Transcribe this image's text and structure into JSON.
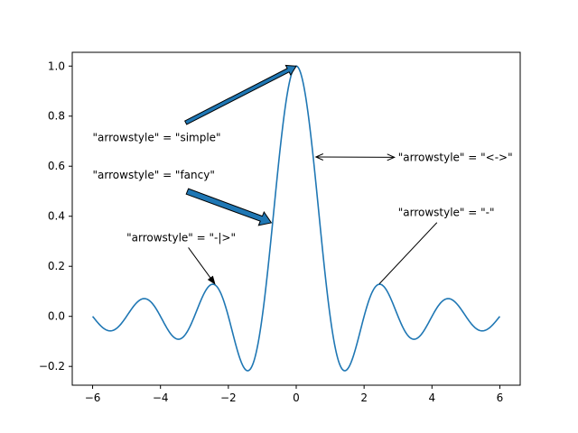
{
  "chart_data": {
    "type": "line",
    "xlim": [
      -6.6,
      6.6
    ],
    "ylim": [
      -0.275,
      1.055
    ],
    "x_ticks": [
      -6,
      -4,
      -2,
      0,
      2,
      4,
      6
    ],
    "y_ticks": [
      -0.2,
      0.0,
      0.2,
      0.4,
      0.6,
      0.8,
      1.0
    ],
    "x_tick_labels": [
      "−6",
      "−4",
      "−2",
      "0",
      "2",
      "4",
      "6"
    ],
    "y_tick_labels": [
      "−0.2",
      "0.0",
      "0.2",
      "0.4",
      "0.6",
      "0.8",
      "1.0"
    ],
    "grid": false,
    "series": [
      {
        "color": "#1f77b4",
        "x": [
          -6.0,
          -5.75,
          -5.5,
          -5.25,
          -5.0,
          -4.75,
          -4.493,
          -4.25,
          -4.0,
          -3.75,
          -3.5,
          -3.25,
          -3.0,
          -2.75,
          -2.459,
          -2.25,
          -2.0,
          -1.75,
          -1.5,
          -1.25,
          -1.0,
          -0.75,
          -0.5,
          -0.25,
          0.0,
          0.25,
          0.5,
          0.75,
          1.0,
          1.25,
          1.5,
          1.75,
          2.0,
          2.25,
          2.459,
          2.75,
          3.0,
          3.25,
          3.5,
          3.75,
          4.0,
          4.25,
          4.493,
          4.75,
          5.0,
          5.25,
          5.5,
          5.75,
          6.0
        ],
        "y": [
          0.0,
          -0.0428,
          -0.0578,
          -0.0372,
          0.0,
          0.0409,
          0.0678,
          0.063,
          0.0,
          -0.0555,
          -0.0901,
          -0.0832,
          0.0,
          0.0941,
          0.1284,
          0.0962,
          0.0,
          -0.1194,
          -0.2122,
          -0.1769,
          0.0,
          0.3,
          0.6366,
          0.9003,
          1.0,
          0.9003,
          0.6366,
          0.3,
          0.0,
          -0.1769,
          -0.2122,
          -0.1194,
          0.0,
          0.0962,
          0.1284,
          0.0941,
          0.0,
          -0.0832,
          -0.0901,
          -0.0555,
          0.0,
          0.063,
          0.0678,
          0.0409,
          0.0,
          -0.0372,
          -0.0578,
          -0.0428,
          0.0
        ]
      }
    ],
    "annotations": [
      {
        "text": "\"arrowstyle\" = \"simple\"",
        "style": "simple",
        "xy": [
          0.0,
          1.0
        ],
        "xytext": [
          -6.0,
          0.7
        ]
      },
      {
        "text": "\"arrowstyle\" = \"fancy\"",
        "style": "fancy",
        "xy": [
          -0.733,
          0.374
        ],
        "xytext": [
          -6.0,
          0.55
        ]
      },
      {
        "text": "\"arrowstyle\" = \"<->\"",
        "style": "<->",
        "xy": [
          0.58,
          0.637
        ],
        "xytext": [
          3.0,
          0.62
        ]
      },
      {
        "text": "\"arrowstyle\" = \"-|>\"",
        "style": "-|>",
        "xy": [
          -2.4,
          0.13
        ],
        "xytext": [
          -5.0,
          0.3
        ]
      },
      {
        "text": "\"arrowstyle\" = \"-\"",
        "style": "-",
        "xy": [
          2.45,
          0.13
        ],
        "xytext": [
          3.0,
          0.4
        ]
      }
    ],
    "colors": {
      "line": "#1f77b4",
      "fancy_fill": "#1f77b4",
      "arrow": "#000000"
    }
  }
}
